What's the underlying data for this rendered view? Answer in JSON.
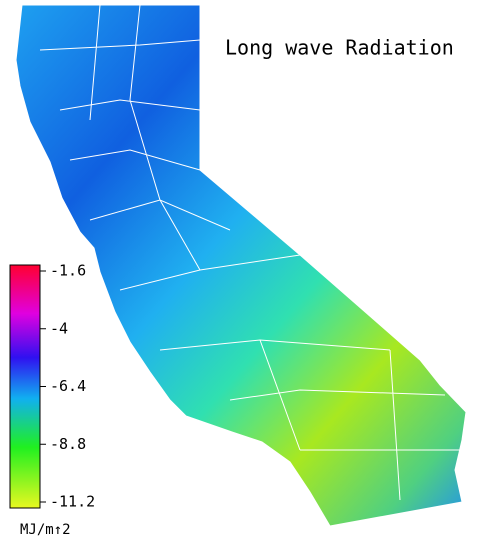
{
  "title": "Long wave Radiation",
  "legend": {
    "ticks": [
      -1.6,
      -4.0,
      -6.4,
      -8.8,
      -11.2
    ],
    "unit": "MJ/m↑2"
  }
}
